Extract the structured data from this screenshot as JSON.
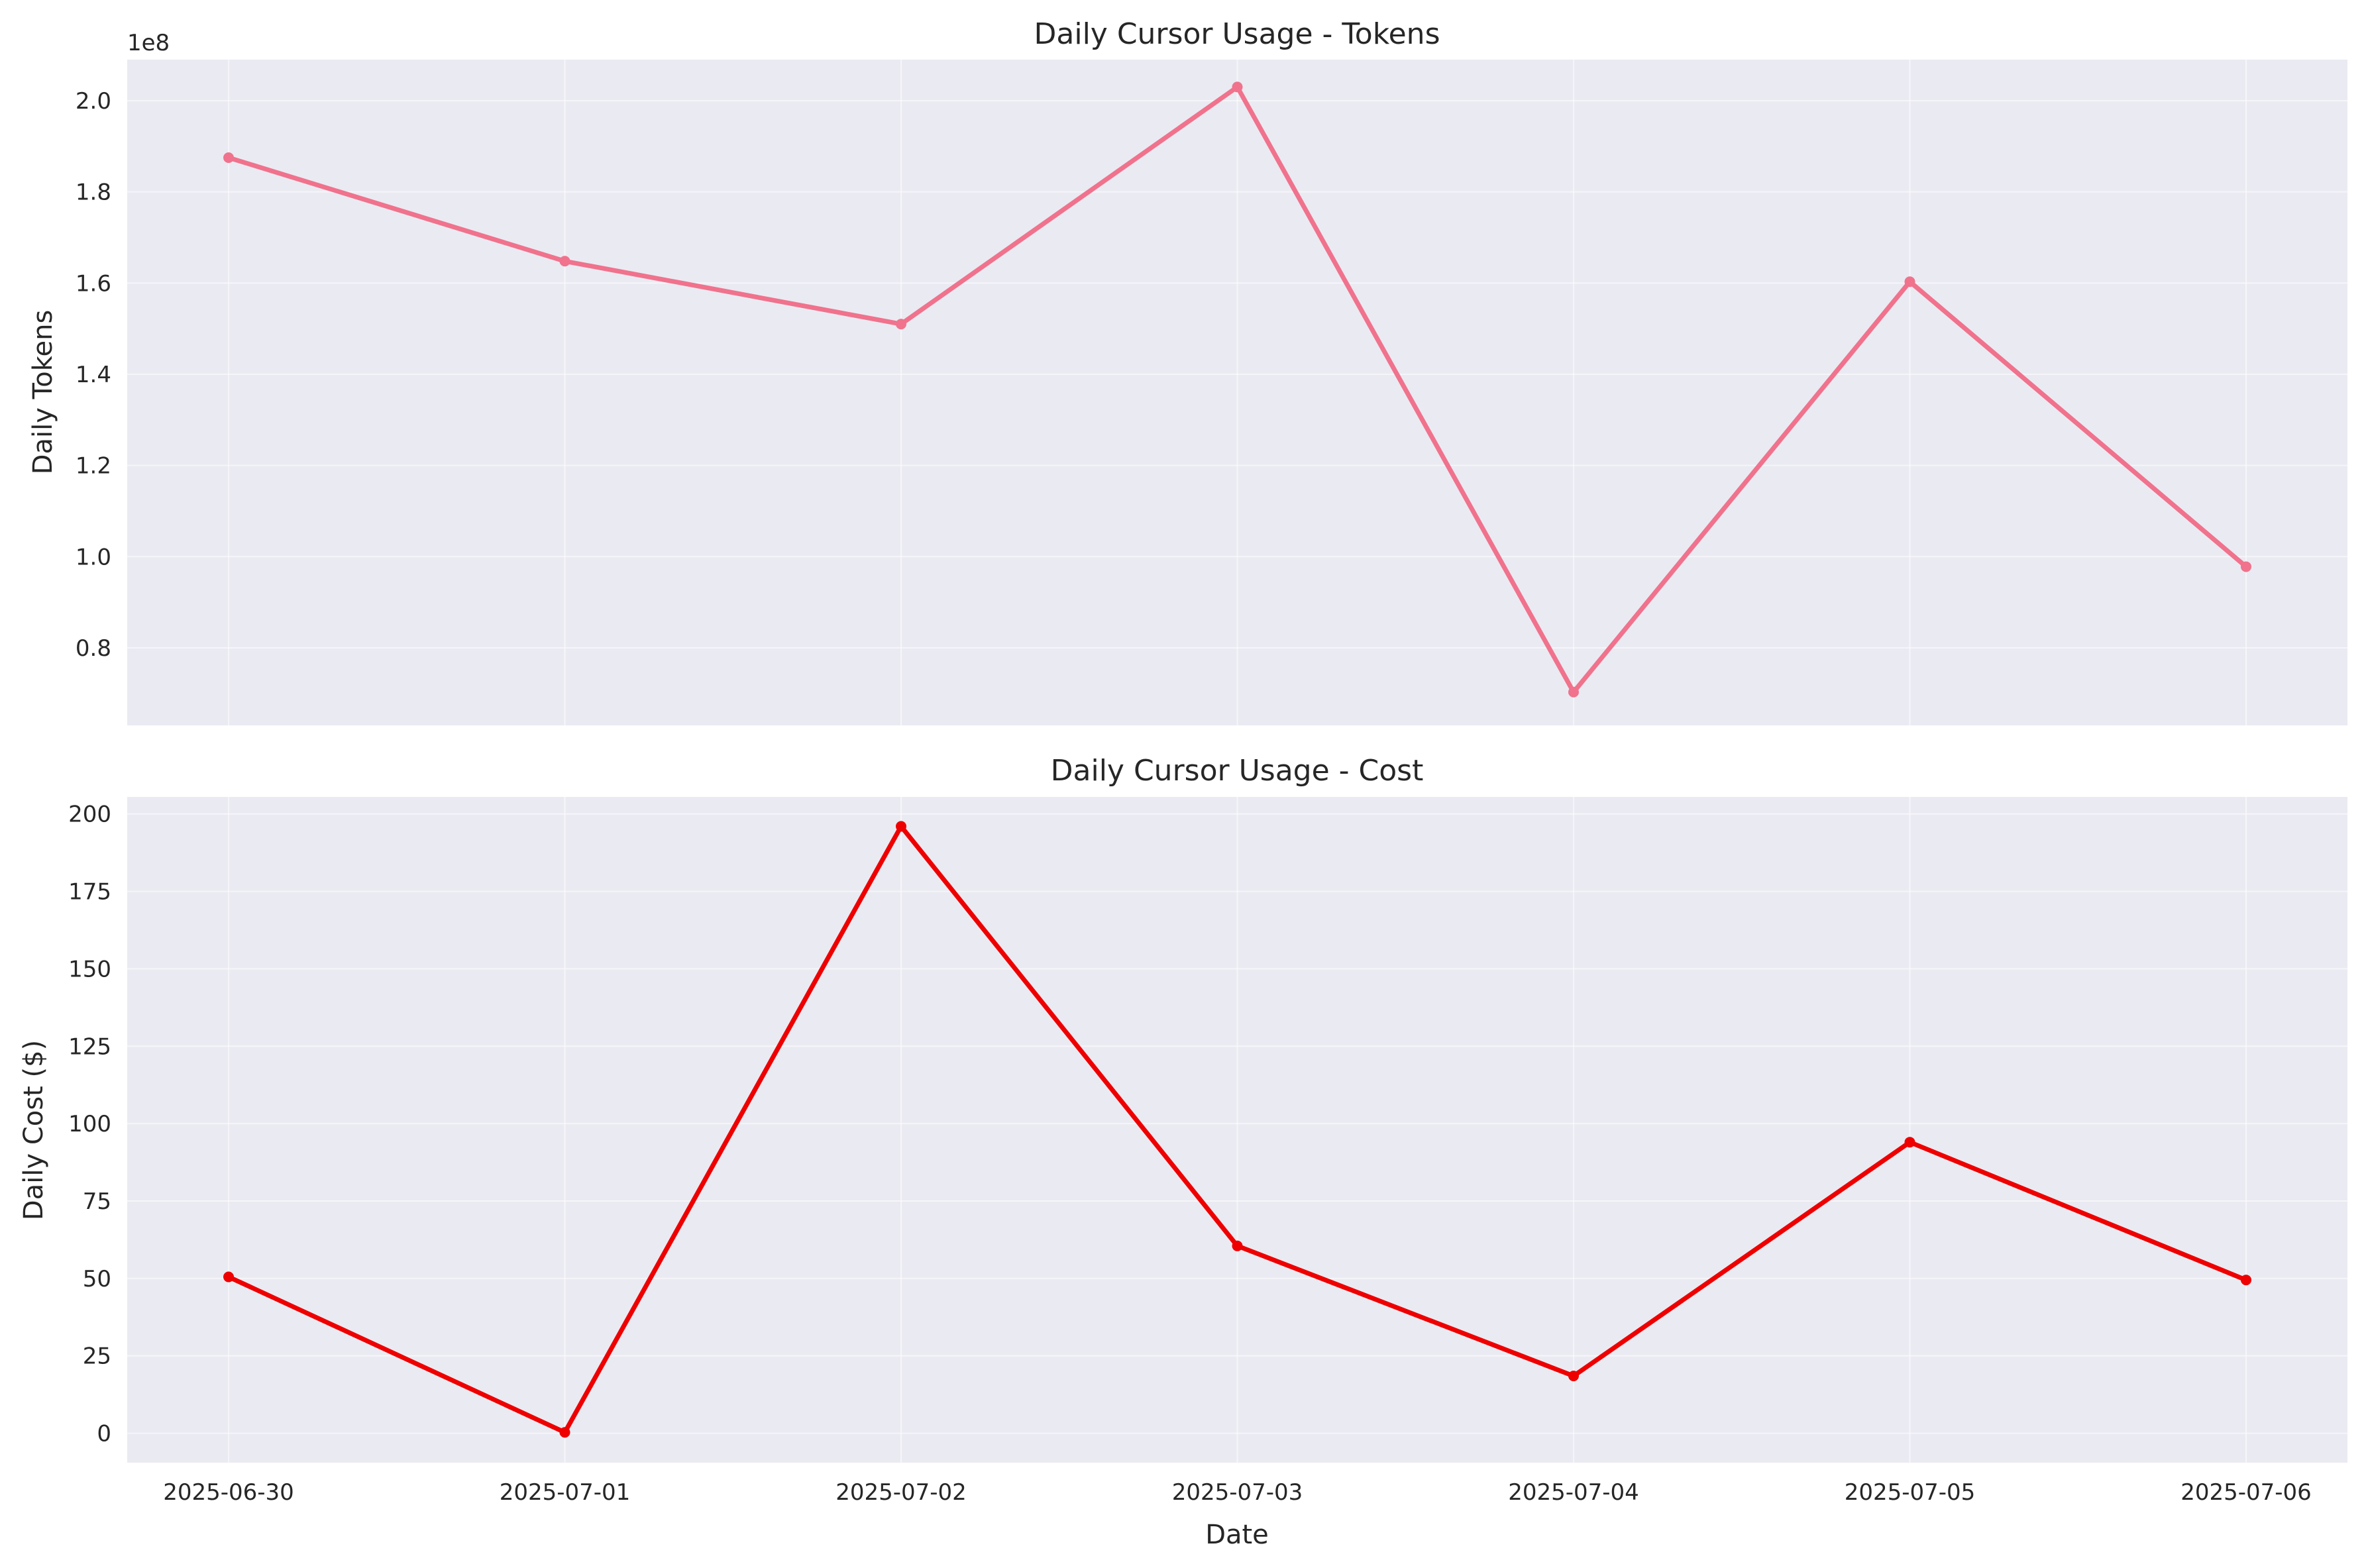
{
  "chart_data": [
    {
      "type": "line",
      "title": "Daily Cursor Usage - Tokens",
      "xlabel": "",
      "ylabel": "Daily Tokens",
      "y_offset_label": "1e8",
      "x": [
        "2025-06-30",
        "2025-07-01",
        "2025-07-02",
        "2025-07-03",
        "2025-07-04",
        "2025-07-05",
        "2025-07-06"
      ],
      "series": [
        {
          "values": [
            1.875,
            1.648,
            1.51,
            2.03,
            0.703,
            1.603,
            0.978
          ],
          "color": "#f0728c"
        }
      ],
      "ylim": [
        0.63,
        2.09
      ],
      "yticks": [
        0.8,
        1.0,
        1.2,
        1.4,
        1.6,
        1.8,
        2.0
      ],
      "ytick_labels": [
        "0.8",
        "1.0",
        "1.2",
        "1.4",
        "1.6",
        "1.8",
        "2.0"
      ],
      "show_xtick_labels": false,
      "grid": true,
      "background": "#eaeaf2"
    },
    {
      "type": "line",
      "title": "Daily Cursor Usage - Cost",
      "xlabel": "Date",
      "ylabel": "Daily Cost ($)",
      "x": [
        "2025-06-30",
        "2025-07-01",
        "2025-07-02",
        "2025-07-03",
        "2025-07-04",
        "2025-07-05",
        "2025-07-06"
      ],
      "series": [
        {
          "values": [
            50.5,
            0.3,
            196.0,
            60.5,
            18.5,
            94.0,
            49.5
          ],
          "color": "#ee0000"
        }
      ],
      "ylim": [
        -9.5,
        205.5
      ],
      "yticks": [
        0,
        25,
        50,
        75,
        100,
        125,
        150,
        175,
        200
      ],
      "ytick_labels": [
        "0",
        "25",
        "50",
        "75",
        "100",
        "125",
        "150",
        "175",
        "200"
      ],
      "show_xtick_labels": true,
      "grid": true,
      "background": "#eaeaf2"
    }
  ]
}
